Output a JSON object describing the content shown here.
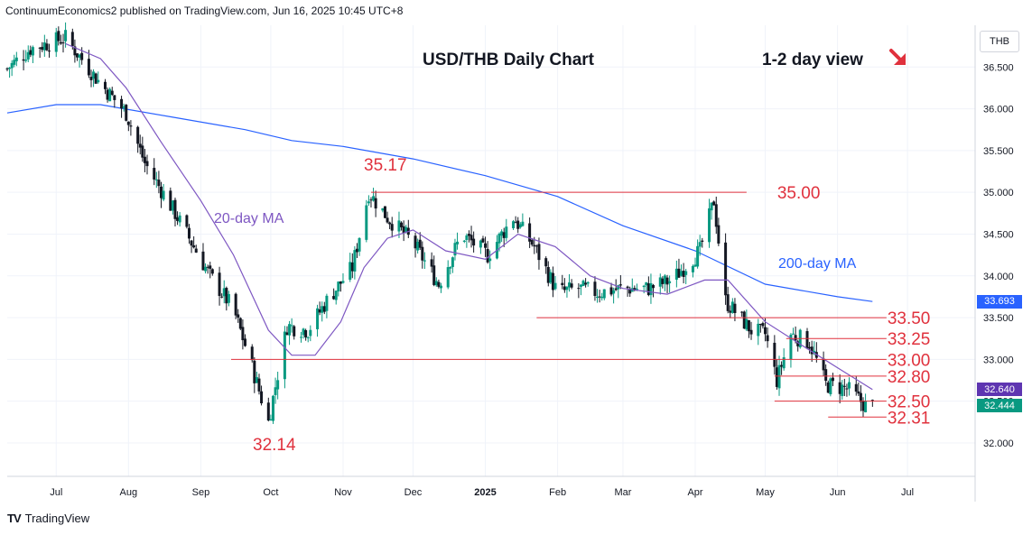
{
  "header": {
    "published_line": "ContinuumEconomics2 published on TradingView.com, Jun 16, 2025 10:45 UTC+8"
  },
  "brand": {
    "logo_text": "TV",
    "name": "TradingView"
  },
  "currency": "THB",
  "price_tags": [
    {
      "label": "33.693",
      "color": "#2962ff",
      "value": 33.693
    },
    {
      "label": "32.640",
      "color": "#5e35b1",
      "value": 32.64
    },
    {
      "label": "32.444",
      "color": "#089981",
      "value": 32.444
    }
  ],
  "chart_data": {
    "type": "candlestick",
    "title": "USD/THB Daily Chart",
    "view_label": "1-2 day view",
    "view_arrow": "down-right-arrow",
    "ylim": [
      31.6,
      37.0
    ],
    "y_ticks": [
      "32.000",
      "32.500",
      "33.000",
      "33.500",
      "34.000",
      "34.500",
      "35.000",
      "35.500",
      "36.000",
      "36.500"
    ],
    "y_tick_values": [
      32.0,
      32.5,
      33.0,
      33.5,
      34.0,
      34.5,
      35.0,
      35.5,
      36.0,
      36.5
    ],
    "x_ticks": [
      "Jul",
      "Aug",
      "Sep",
      "Oct",
      "Nov",
      "Dec",
      "2025",
      "Feb",
      "Mar",
      "Apr",
      "May",
      "Jun",
      "Jul"
    ],
    "x_tick_bold": [
      false,
      false,
      false,
      false,
      false,
      false,
      true,
      false,
      false,
      false,
      false,
      false,
      false
    ],
    "x_range": [
      "2024-06-10",
      "2025-07-30"
    ],
    "x_tick_dates": [
      "2024-07-01",
      "2024-08-01",
      "2024-09-01",
      "2024-10-01",
      "2024-11-01",
      "2024-12-01",
      "2025-01-01",
      "2025-02-01",
      "2025-03-01",
      "2025-04-01",
      "2025-05-01",
      "2025-06-01",
      "2025-07-01"
    ],
    "colors": {
      "up": "#089981",
      "down": "#131722",
      "ma20": "#7e57c2",
      "ma200": "#2962ff",
      "levels": "#e0313d"
    },
    "price_anchors": [
      [
        "2024-06-10",
        36.48
      ],
      [
        "2024-06-20",
        36.72
      ],
      [
        "2024-07-05",
        36.85
      ],
      [
        "2024-07-20",
        36.3
      ],
      [
        "2024-07-31",
        35.95
      ],
      [
        "2024-08-08",
        35.35
      ],
      [
        "2024-08-20",
        34.8
      ],
      [
        "2024-09-05",
        34.0
      ],
      [
        "2024-09-15",
        33.6
      ],
      [
        "2024-09-22",
        33.0
      ],
      [
        "2024-09-30",
        32.25
      ],
      [
        "2024-10-08",
        33.4
      ],
      [
        "2024-10-17",
        33.35
      ],
      [
        "2024-10-25",
        33.7
      ],
      [
        "2024-11-05",
        34.1
      ],
      [
        "2024-11-12",
        35.0
      ],
      [
        "2024-11-20",
        34.7
      ],
      [
        "2024-12-01",
        34.4
      ],
      [
        "2024-12-12",
        33.9
      ],
      [
        "2024-12-22",
        34.5
      ],
      [
        "2025-01-02",
        34.25
      ],
      [
        "2025-01-13",
        34.7
      ],
      [
        "2025-01-22",
        34.35
      ],
      [
        "2025-02-01",
        33.8
      ],
      [
        "2025-02-10",
        33.85
      ],
      [
        "2025-02-18",
        33.8
      ],
      [
        "2025-03-01",
        33.85
      ],
      [
        "2025-03-12",
        33.85
      ],
      [
        "2025-03-22",
        33.95
      ],
      [
        "2025-04-03",
        34.3
      ],
      [
        "2025-04-09",
        34.9
      ],
      [
        "2025-04-14",
        33.7
      ],
      [
        "2025-04-25",
        33.35
      ],
      [
        "2025-05-01",
        33.3
      ],
      [
        "2025-05-06",
        32.75
      ],
      [
        "2025-05-12",
        33.3
      ],
      [
        "2025-05-20",
        33.2
      ],
      [
        "2025-05-27",
        32.7
      ],
      [
        "2025-06-05",
        32.65
      ],
      [
        "2025-06-13",
        32.45
      ],
      [
        "2025-06-16",
        32.444
      ]
    ],
    "ma20": {
      "name": "20-day MA",
      "points": [
        [
          "2024-07-05",
          36.78
        ],
        [
          "2024-07-20",
          36.6
        ],
        [
          "2024-07-31",
          36.25
        ],
        [
          "2024-08-15",
          35.6
        ],
        [
          "2024-09-01",
          34.9
        ],
        [
          "2024-09-15",
          34.25
        ],
        [
          "2024-09-30",
          33.35
        ],
        [
          "2024-10-10",
          33.05
        ],
        [
          "2024-10-20",
          33.05
        ],
        [
          "2024-10-31",
          33.45
        ],
        [
          "2024-11-10",
          34.1
        ],
        [
          "2024-11-20",
          34.45
        ],
        [
          "2024-12-01",
          34.55
        ],
        [
          "2024-12-15",
          34.3
        ],
        [
          "2025-01-01",
          34.2
        ],
        [
          "2025-01-15",
          34.5
        ],
        [
          "2025-01-31",
          34.35
        ],
        [
          "2025-02-15",
          34.0
        ],
        [
          "2025-03-01",
          33.85
        ],
        [
          "2025-03-20",
          33.78
        ],
        [
          "2025-04-05",
          33.95
        ],
        [
          "2025-04-15",
          33.95
        ],
        [
          "2025-05-01",
          33.45
        ],
        [
          "2025-05-15",
          33.2
        ],
        [
          "2025-06-01",
          32.9
        ],
        [
          "2025-06-16",
          32.64
        ]
      ]
    },
    "ma200": {
      "name": "200-day MA",
      "points": [
        [
          "2024-06-10",
          35.95
        ],
        [
          "2024-07-01",
          36.05
        ],
        [
          "2024-07-20",
          36.05
        ],
        [
          "2024-08-20",
          35.9
        ],
        [
          "2024-09-20",
          35.75
        ],
        [
          "2024-10-10",
          35.62
        ],
        [
          "2024-11-01",
          35.55
        ],
        [
          "2024-12-01",
          35.4
        ],
        [
          "2025-01-01",
          35.2
        ],
        [
          "2025-02-01",
          34.95
        ],
        [
          "2025-03-01",
          34.6
        ],
        [
          "2025-04-01",
          34.3
        ],
        [
          "2025-05-01",
          33.9
        ],
        [
          "2025-06-01",
          33.75
        ],
        [
          "2025-06-16",
          33.693
        ]
      ]
    },
    "levels": [
      {
        "label": "35.00",
        "value": 35.0,
        "from": "2024-11-13",
        "to": "2025-04-23"
      },
      {
        "label": "33.50",
        "value": 33.5,
        "from": "2025-01-23",
        "to": "2025-06-22"
      },
      {
        "label": "33.25",
        "value": 33.25,
        "from": "2025-05-10",
        "to": "2025-06-22"
      },
      {
        "label": "33.00",
        "value": 33.0,
        "from": "2024-09-14",
        "to": "2025-06-22"
      },
      {
        "label": "32.80",
        "value": 32.8,
        "from": "2025-05-05",
        "to": "2025-06-22"
      },
      {
        "label": "32.50",
        "value": 32.5,
        "from": "2025-05-05",
        "to": "2025-06-22"
      },
      {
        "label": "32.31",
        "value": 32.31,
        "from": "2025-05-28",
        "to": "2025-06-22"
      }
    ],
    "annotations": [
      {
        "text": "35.17",
        "value": 35.17,
        "date": "2024-11-14",
        "color": "#e0313d"
      },
      {
        "text": "32.14",
        "value": 32.14,
        "date": "2024-09-30",
        "color": "#e0313d"
      },
      {
        "text": "20-day MA",
        "color": "#7e57c2"
      },
      {
        "text": "200-day MA",
        "color": "#2962ff"
      }
    ]
  }
}
